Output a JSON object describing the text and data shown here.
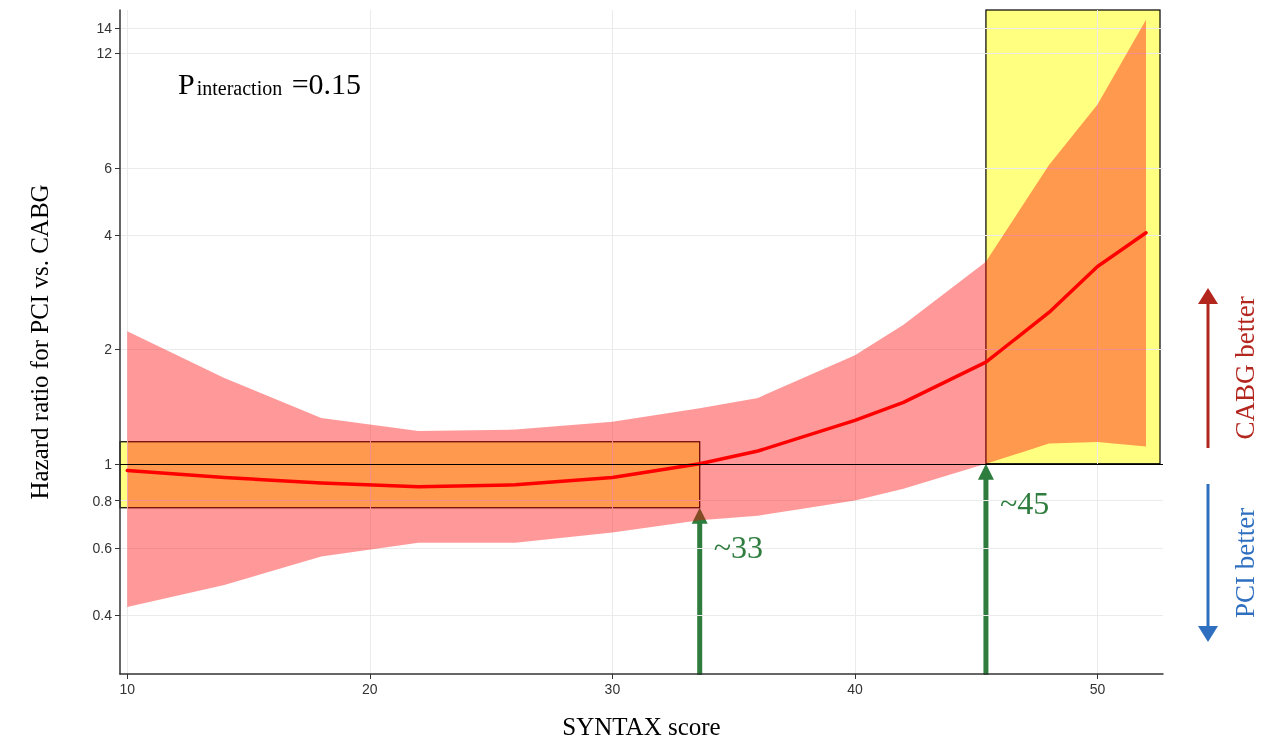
{
  "chart_data": {
    "type": "line",
    "xlabel": "SYNTAX score",
    "ylabel": "Hazard ratio for PCI vs. CABG",
    "log": "y",
    "grid": true,
    "marker": "none",
    "line_style": "solid",
    "xlim": [
      9.7,
      52.7
    ],
    "xticks": [
      10,
      20,
      30,
      40,
      50
    ],
    "ylim": [
      0.28,
      15.6
    ],
    "yticks": [
      0.4,
      0.6,
      0.8,
      1,
      2,
      4,
      6,
      12,
      14
    ],
    "series": [
      {
        "color": "#ff0000",
        "x": [
          10,
          14,
          18,
          22,
          26,
          30,
          33.6,
          36,
          40,
          42,
          45.4,
          48,
          50,
          52
        ],
        "values": [
          0.96,
          0.92,
          0.89,
          0.87,
          0.88,
          0.92,
          1.0,
          1.08,
          1.3,
          1.45,
          1.85,
          2.5,
          3.3,
          4.05
        ],
        "lower": [
          0.42,
          0.48,
          0.57,
          0.62,
          0.62,
          0.66,
          0.71,
          0.73,
          0.8,
          0.86,
          1.0,
          1.13,
          1.14,
          1.11
        ],
        "upper": [
          2.23,
          1.68,
          1.32,
          1.22,
          1.23,
          1.29,
          1.4,
          1.49,
          1.93,
          2.32,
          3.4,
          6.1,
          8.8,
          14.7
        ]
      }
    ],
    "ref_lines": [
      {
        "axis": "y",
        "value": 1,
        "color": "#000000"
      }
    ],
    "annotations": [
      "P$_{interaction}$ =0.15",
      {
        "text": "~33",
        "x": 33.6,
        "y": 1
      },
      {
        "text": "~45",
        "x": 45.4,
        "y": 1
      },
      "CABG better",
      "PCI better"
    ]
  }
}
